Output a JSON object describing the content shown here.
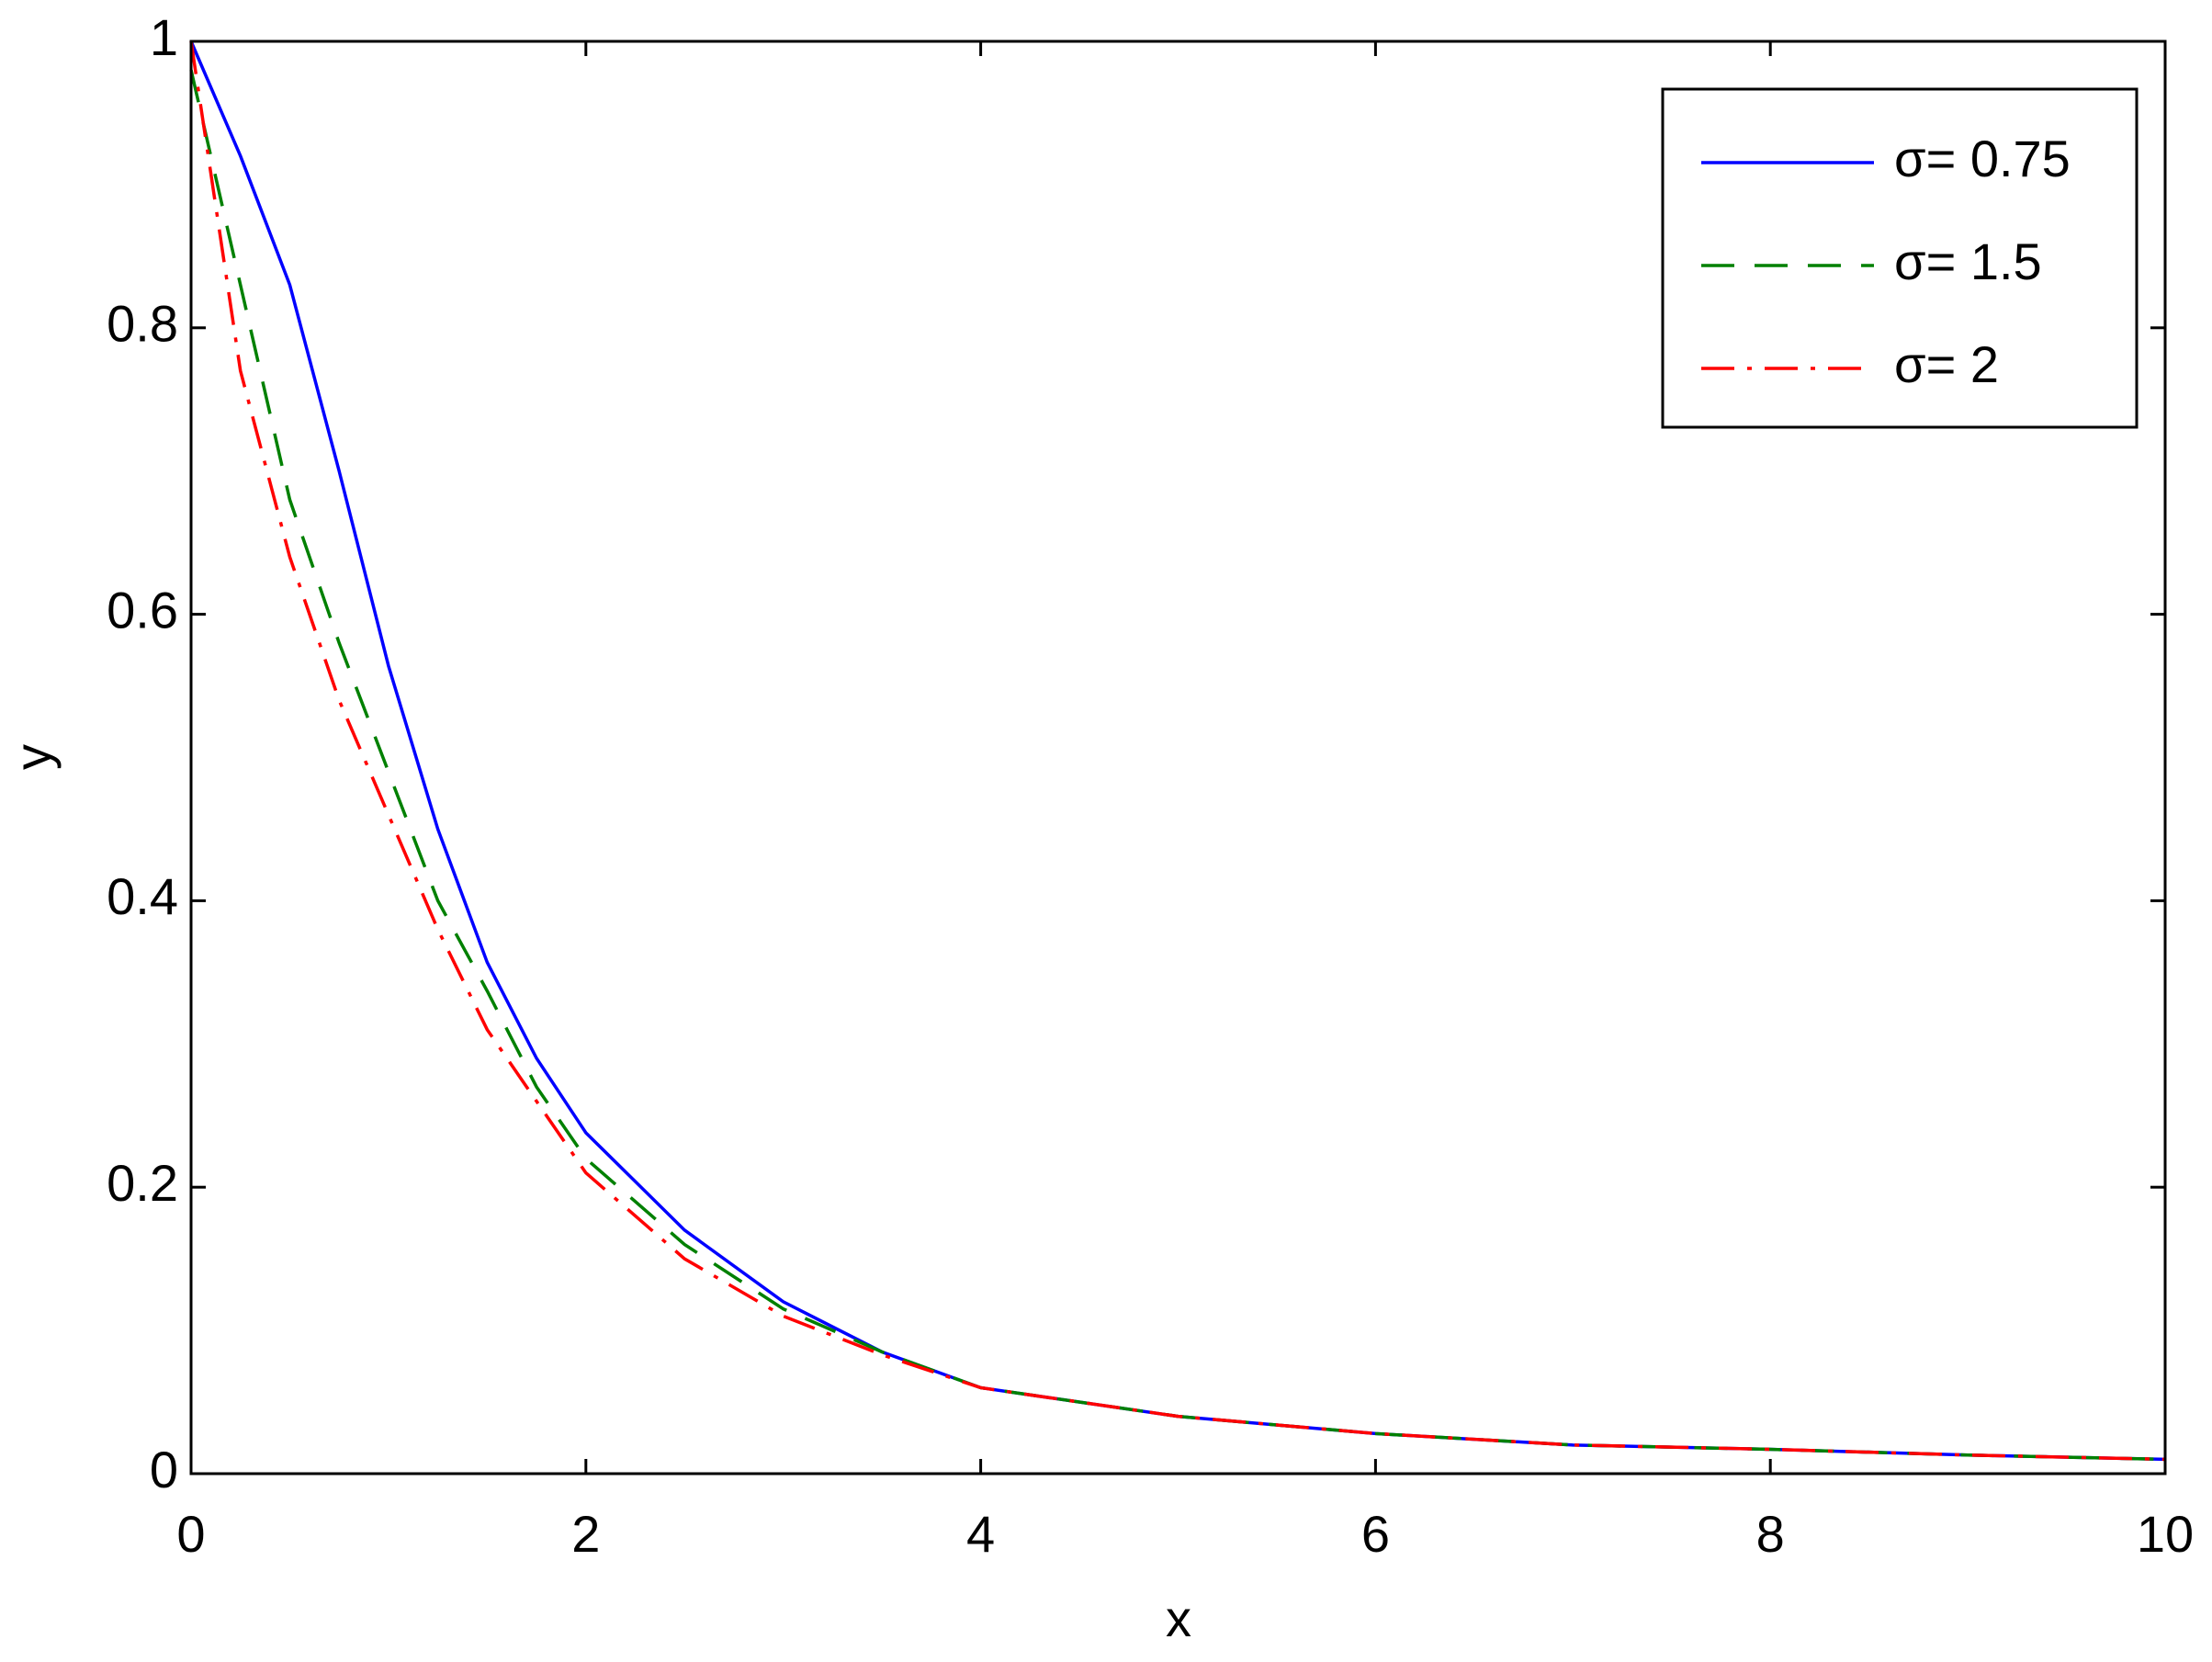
{
  "chart_data": {
    "type": "line",
    "x_label": "x",
    "y_label": "y",
    "x": [
      0,
      0.25,
      0.5,
      0.75,
      1,
      1.25,
      1.5,
      1.75,
      2,
      2.5,
      3,
      3.5,
      4,
      5,
      6,
      7,
      8,
      9,
      10
    ],
    "series": [
      {
        "name": "σ= 0.75",
        "color": "#0000ff",
        "linestyle": "solid",
        "values": [
          1,
          0.92,
          0.83,
          0.7,
          0.564,
          0.45,
          0.357,
          0.29,
          0.238,
          0.17,
          0.12,
          0.085,
          0.06,
          0.04,
          0.028,
          0.02,
          0.017,
          0.013,
          0.01
        ]
      },
      {
        "name": "σ= 1.5",
        "color": "#008000",
        "linestyle": "dashed",
        "values": [
          0.98,
          0.83,
          0.68,
          0.58,
          0.49,
          0.4,
          0.337,
          0.27,
          0.22,
          0.16,
          0.115,
          0.085,
          0.06,
          0.04,
          0.028,
          0.02,
          0.017,
          0.013,
          0.01
        ]
      },
      {
        "name": "σ= 2",
        "color": "#ff0000",
        "linestyle": "dashdot",
        "values": [
          1,
          0.77,
          0.64,
          0.54,
          0.46,
          0.38,
          0.31,
          0.26,
          0.21,
          0.15,
          0.11,
          0.083,
          0.06,
          0.04,
          0.028,
          0.02,
          0.017,
          0.013,
          0.01
        ]
      }
    ],
    "xlim": [
      0,
      10
    ],
    "ylim": [
      0,
      1
    ],
    "xticks": [
      0,
      2,
      4,
      6,
      8,
      10
    ],
    "yticks": [
      0,
      0.2,
      0.4,
      0.6,
      0.8,
      1
    ],
    "legend": "upper right"
  }
}
